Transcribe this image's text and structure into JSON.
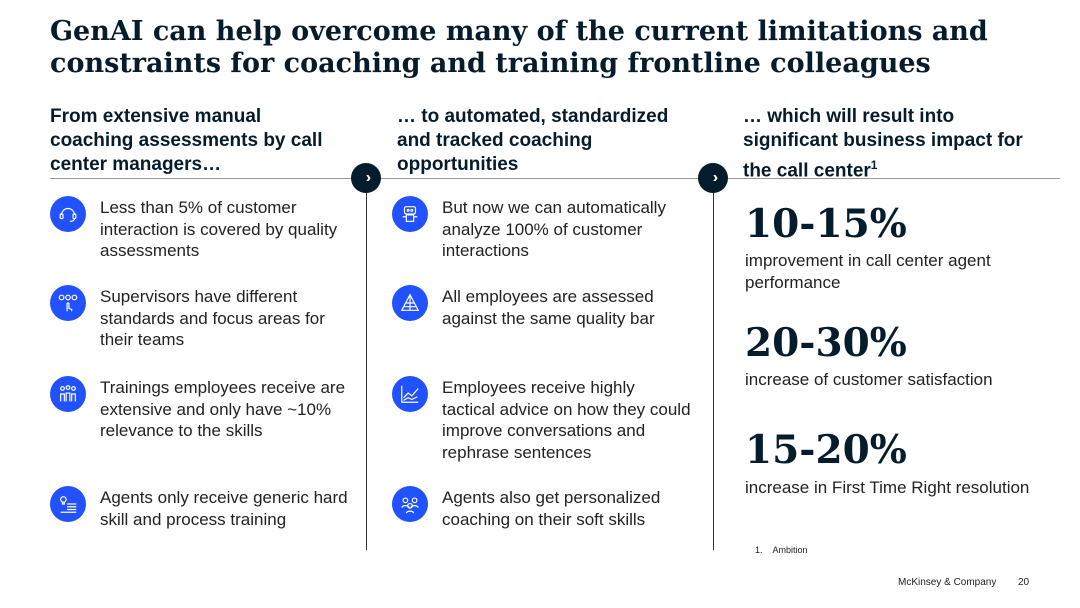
{
  "title": "GenAI can help overcome many of the current limitations and constraints for coaching and training frontline colleagues",
  "columns": [
    {
      "heading": "From extensive manual coaching assessments by call center managers…"
    },
    {
      "heading": "… to automated, standardized and tracked coaching opportunities"
    },
    {
      "heading": "… which will result into significant business impact for the call center",
      "superscript": "1"
    }
  ],
  "left_items": [
    {
      "text": "Less than 5% of customer interaction is covered by quality assessments",
      "icon": "headset-icon"
    },
    {
      "text": "Supervisors have different standards and focus areas for their teams",
      "icon": "options-hand-icon"
    },
    {
      "text": "Trainings employees receive are extensive and only have ~10% relevance to the skills",
      "icon": "group-people-icon"
    },
    {
      "text": "Agents only receive generic hard skill and process training",
      "icon": "document-idea-icon"
    }
  ],
  "middle_items": [
    {
      "text": "But now we can automatically analyze 100% of customer interactions",
      "icon": "robot-icon"
    },
    {
      "text": "All employees are assessed against the same quality bar",
      "icon": "pyramid-icon"
    },
    {
      "text": "Employees receive highly tactical advice on how they could improve conversations and rephrase sentences",
      "icon": "line-chart-icon"
    },
    {
      "text": "Agents also get personalized coaching on their soft skills",
      "icon": "team-coaching-icon"
    }
  ],
  "impacts": [
    {
      "value": "10-15%",
      "label": "improvement in call center agent performance"
    },
    {
      "value": "20-30%",
      "label": "increase of customer satisfaction"
    },
    {
      "value": "15-20%",
      "label": "increase in First Time Right resolution"
    }
  ],
  "footnote": {
    "number": "1.",
    "text": "Ambition"
  },
  "footer": {
    "brand": "McKinsey & Company",
    "page": "20"
  },
  "colors": {
    "accent": "#2251ff",
    "dark": "#051c2c"
  }
}
